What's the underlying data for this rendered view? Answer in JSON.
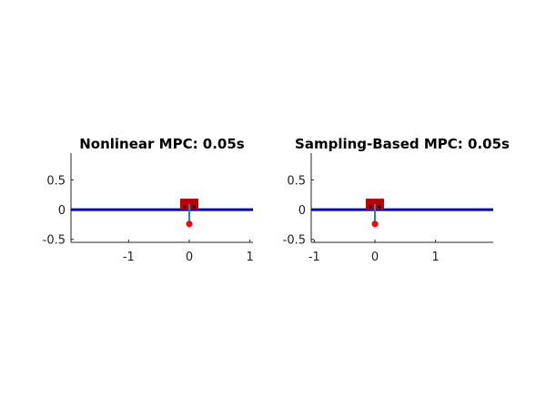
{
  "colors": {
    "axis": "#262626",
    "track": "#0000cc",
    "cart": "#bb0000",
    "pole": "#2d7fc8",
    "bob": "#ff0000",
    "wheel": "#000000"
  },
  "panels": [
    {
      "title": "Nonlinear MPC: 0.05s",
      "xlim": [
        -1.95,
        1.05
      ],
      "ylim": [
        -0.55,
        0.95
      ],
      "xticks": [
        {
          "value": -1,
          "label": "-1"
        },
        {
          "value": 0,
          "label": "0"
        },
        {
          "value": 1,
          "label": "1"
        }
      ],
      "yticks": [
        {
          "value": -0.5,
          "label": "-0.5"
        },
        {
          "value": 0,
          "label": "0"
        },
        {
          "value": 0.5,
          "label": "0.5"
        }
      ],
      "cart_x": 0,
      "pole_angle_deg": 180
    },
    {
      "title": "Sampling-Based MPC: 0.05s",
      "xlim": [
        -1.05,
        1.95
      ],
      "ylim": [
        -0.55,
        0.95
      ],
      "xticks": [
        {
          "value": -1,
          "label": "-1"
        },
        {
          "value": 0,
          "label": "0"
        },
        {
          "value": 1,
          "label": "1"
        }
      ],
      "yticks": [
        {
          "value": -0.5,
          "label": "-0.5"
        },
        {
          "value": 0,
          "label": "0"
        },
        {
          "value": 0.5,
          "label": "0.5"
        }
      ],
      "cart_x": 0,
      "pole_angle_deg": 180
    }
  ]
}
